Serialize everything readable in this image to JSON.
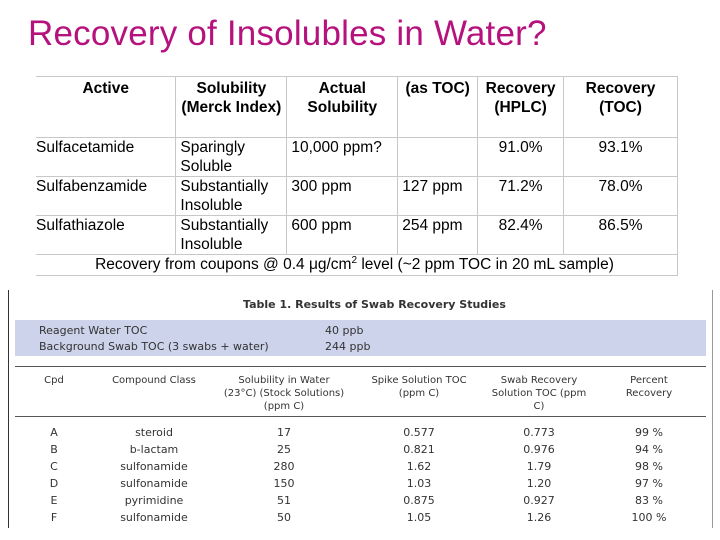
{
  "title": "Recovery of Insolubles in Water?",
  "table1": {
    "headers": [
      "Active",
      "Solubility (Merck Index)",
      "Actual Solubility",
      "(as TOC)",
      "Recovery (HPLC)",
      "Recovery (TOC)"
    ],
    "rows": [
      [
        "Sulfacetamide",
        "Sparingly Soluble",
        "10,000 ppm?",
        "",
        "91.0%",
        "93.1%"
      ],
      [
        "Sulfabenzamide",
        "Substantially Insoluble",
        "300 ppm",
        "127 ppm",
        "71.2%",
        "78.0%"
      ],
      [
        "Sulfathiazole",
        "Substantially Insoluble",
        "600 ppm",
        "254 ppm",
        "82.4%",
        "86.5%"
      ]
    ],
    "footer_pre": "Recovery from coupons @ 0.4 ",
    "footer_unit": "μg/cm",
    "footer_exp": "2",
    "footer_post": " level (~2 ppm TOC in 20 mL sample)"
  },
  "table2": {
    "caption": "Table 1.  Results of Swab Recovery Studies",
    "band": [
      {
        "label": "Reagent Water TOC",
        "value": "40 ppb"
      },
      {
        "label": "Background Swab TOC (3 swabs + water)",
        "value": "244 ppb"
      }
    ],
    "headers": [
      "Cpd",
      "Compound Class",
      "Solubility in Water (23°C) (Stock Solutions) (ppm C)",
      "Spike Solution TOC (ppm C)",
      "Swab Recovery Solution TOC (ppm C)",
      "Percent Recovery"
    ],
    "rows": [
      [
        "A",
        "steroid",
        "17",
        "0.577",
        "0.773",
        "99 %"
      ],
      [
        "B",
        "b-lactam",
        "25",
        "0.821",
        "0.976",
        "94 %"
      ],
      [
        "C",
        "sulfonamide",
        "280",
        "1.62",
        "1.79",
        "98 %"
      ],
      [
        "D",
        "sulfonamide",
        "150",
        "1.03",
        "1.20",
        "97 %"
      ],
      [
        "E",
        "pyrimidine",
        "51",
        "0.875",
        "0.927",
        "83 %"
      ],
      [
        "F",
        "sulfonamide",
        "50",
        "1.05",
        "1.26",
        "100 %"
      ]
    ]
  }
}
